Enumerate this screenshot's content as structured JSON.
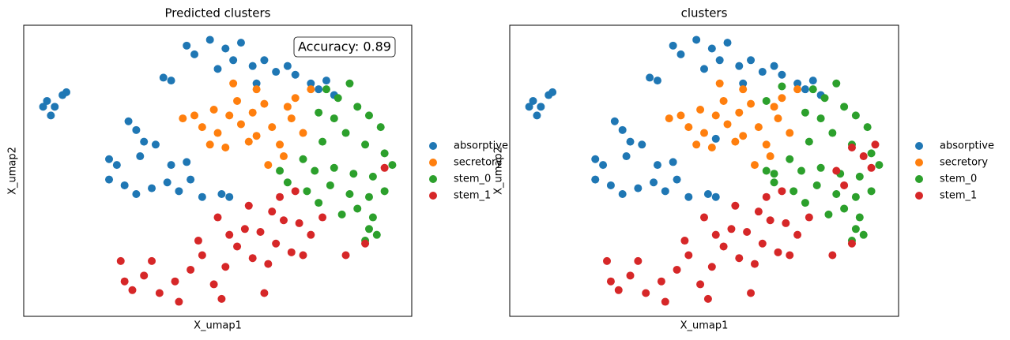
{
  "chart_data": [
    {
      "type": "scatter",
      "title": "Predicted clusters",
      "xlabel": "X_umap1",
      "ylabel": "X_umap2",
      "annotation": "Accuracy: 0.89",
      "xlim": [
        0,
        10
      ],
      "ylim": [
        0,
        10
      ],
      "series": [
        {
          "name": "absorptive",
          "color": "#1f77b4",
          "x": [
            0.5,
            0.6,
            0.8,
            1.0,
            1.1,
            0.7,
            3.6,
            3.8,
            4.2,
            4.4,
            4.8,
            5.2,
            5.4,
            5.6,
            5.9,
            6.2,
            6.5,
            6.8,
            7.0,
            7.4,
            7.8,
            8.0,
            7.6,
            6.0,
            5.0,
            2.7,
            2.9,
            3.1,
            3.4,
            3.0,
            2.4,
            2.2,
            2.6,
            2.9,
            3.3,
            3.7,
            4.0,
            4.3,
            4.6,
            5.1,
            5.3,
            3.8,
            4.2,
            2.2
          ],
          "y": [
            7.2,
            7.4,
            7.2,
            7.6,
            7.7,
            6.9,
            8.2,
            8.1,
            9.3,
            9.0,
            9.5,
            9.2,
            8.8,
            9.4,
            8.6,
            8.8,
            8.4,
            8.6,
            8.3,
            8.0,
            8.1,
            7.6,
            7.8,
            8.0,
            8.5,
            6.7,
            6.4,
            6.0,
            5.9,
            5.5,
            5.2,
            4.7,
            4.5,
            4.2,
            4.4,
            4.6,
            4.3,
            4.7,
            4.1,
            4.2,
            4.1,
            5.2,
            5.3,
            5.4
          ]
        },
        {
          "name": "secretory",
          "color": "#ff7f0e",
          "x": [
            4.1,
            4.4,
            4.6,
            4.9,
            5.0,
            5.3,
            5.5,
            5.6,
            5.9,
            6.0,
            6.2,
            6.4,
            6.6,
            6.7,
            6.9,
            7.0,
            7.2,
            6.3,
            5.8,
            4.8,
            5.2,
            6.8,
            7.4,
            5.4,
            6.0
          ],
          "y": [
            6.8,
            6.9,
            6.5,
            7.1,
            6.3,
            6.9,
            7.4,
            6.6,
            7.0,
            6.2,
            7.3,
            6.5,
            5.9,
            5.5,
            6.8,
            7.5,
            6.3,
            5.2,
            6.0,
            5.9,
            5.8,
            7.2,
            7.8,
            8.0,
            7.8
          ]
        },
        {
          "name": "stem_0",
          "color": "#2ca02c",
          "x": [
            7.8,
            8.1,
            8.4,
            7.6,
            8.0,
            8.6,
            8.9,
            9.2,
            8.3,
            7.7,
            8.8,
            9.3,
            9.5,
            7.2,
            7.5,
            8.0,
            8.5,
            9.0,
            6.8,
            7.3,
            7.9,
            8.4,
            8.9,
            9.3,
            8.6,
            9.0,
            8.9,
            8.8,
            9.1,
            7.6,
            6.6,
            8.2
          ],
          "y": [
            7.8,
            7.5,
            8.0,
            7.0,
            6.8,
            7.2,
            6.9,
            6.5,
            6.3,
            6.0,
            5.9,
            5.6,
            5.2,
            5.4,
            5.0,
            5.1,
            4.9,
            4.8,
            4.6,
            4.3,
            4.5,
            4.2,
            4.1,
            4.3,
            3.7,
            3.4,
            3.0,
            2.6,
            2.8,
            3.9,
            5.0,
            3.5
          ]
        },
        {
          "name": "stem_1",
          "color": "#d62728",
          "x": [
            2.6,
            2.5,
            2.8,
            3.1,
            3.5,
            3.3,
            3.9,
            4.0,
            4.3,
            4.6,
            4.9,
            5.1,
            5.2,
            5.5,
            5.7,
            5.3,
            4.5,
            5.9,
            6.1,
            6.3,
            6.5,
            6.7,
            6.9,
            7.1,
            7.4,
            7.7,
            7.2,
            5.8,
            6.4,
            7.0,
            8.3,
            8.8,
            9.3,
            6.6,
            6.2,
            5.0
          ],
          "y": [
            1.2,
            1.9,
            0.9,
            1.4,
            0.8,
            1.9,
            1.2,
            0.5,
            1.6,
            2.1,
            1.1,
            0.6,
            1.7,
            2.4,
            3.0,
            2.8,
            2.6,
            2.0,
            2.9,
            1.8,
            2.5,
            3.3,
            2.2,
            3.2,
            2.8,
            3.4,
            2.1,
            3.8,
            3.6,
            4.3,
            2.1,
            2.5,
            5.1,
            4.1,
            0.8,
            3.4
          ]
        }
      ]
    },
    {
      "type": "scatter",
      "title": "clusters",
      "xlabel": "X_umap1",
      "ylabel": "X_umap2",
      "xlim": [
        0,
        10
      ],
      "ylim": [
        0,
        10
      ],
      "series": [
        {
          "name": "absorptive",
          "color": "#1f77b4",
          "x": [
            0.5,
            0.6,
            0.8,
            1.0,
            1.1,
            0.7,
            3.6,
            3.8,
            4.2,
            4.4,
            4.8,
            5.2,
            5.4,
            5.6,
            5.9,
            6.2,
            6.5,
            6.8,
            7.0,
            7.4,
            7.8,
            8.0,
            7.6,
            6.0,
            5.0,
            2.7,
            2.9,
            3.1,
            3.4,
            3.0,
            2.4,
            2.2,
            2.6,
            2.9,
            3.3,
            3.7,
            4.0,
            4.3,
            4.6,
            5.1,
            5.3,
            3.8,
            4.2,
            2.2,
            5.3
          ],
          "y": [
            7.2,
            7.4,
            7.2,
            7.6,
            7.7,
            6.9,
            8.2,
            8.1,
            9.3,
            9.0,
            9.5,
            9.2,
            8.8,
            9.4,
            8.6,
            8.8,
            8.4,
            8.6,
            8.3,
            8.0,
            8.1,
            7.6,
            7.8,
            8.0,
            8.5,
            6.7,
            6.4,
            6.0,
            5.9,
            5.5,
            5.2,
            4.7,
            4.5,
            4.2,
            4.4,
            4.6,
            4.3,
            4.7,
            4.1,
            4.2,
            4.1,
            5.2,
            5.3,
            5.4,
            6.1
          ]
        },
        {
          "name": "secretory",
          "color": "#ff7f0e",
          "x": [
            4.1,
            4.4,
            4.6,
            4.9,
            5.0,
            5.3,
            5.5,
            5.6,
            5.9,
            6.0,
            6.2,
            6.4,
            6.6,
            6.7,
            6.9,
            7.0,
            7.2,
            6.3,
            5.8,
            4.8,
            5.2,
            6.8,
            7.4,
            5.4,
            6.0
          ],
          "y": [
            6.8,
            6.9,
            6.5,
            7.1,
            6.3,
            6.9,
            7.4,
            6.6,
            7.0,
            6.2,
            7.3,
            6.5,
            5.9,
            5.5,
            6.8,
            7.5,
            6.3,
            5.2,
            6.0,
            5.9,
            5.8,
            7.2,
            7.8,
            8.0,
            7.8
          ]
        },
        {
          "name": "stem_0",
          "color": "#2ca02c",
          "x": [
            7.8,
            8.1,
            8.4,
            7.6,
            8.0,
            8.6,
            8.9,
            9.2,
            8.3,
            7.7,
            8.8,
            9.3,
            9.5,
            7.2,
            7.5,
            8.0,
            8.5,
            9.0,
            6.8,
            7.3,
            7.9,
            8.4,
            8.9,
            9.3,
            8.6,
            9.0,
            8.9,
            8.8,
            9.1,
            7.6,
            6.6,
            8.2,
            7.0,
            6.6,
            6.8
          ],
          "y": [
            7.8,
            7.5,
            8.0,
            7.0,
            6.8,
            7.2,
            6.9,
            6.5,
            6.3,
            6.0,
            5.9,
            5.6,
            5.2,
            5.4,
            5.0,
            5.1,
            4.9,
            4.8,
            4.6,
            4.3,
            4.5,
            4.2,
            4.1,
            4.3,
            3.7,
            3.4,
            3.0,
            2.6,
            2.8,
            3.9,
            5.0,
            3.5,
            7.9,
            7.4,
            4.9
          ]
        },
        {
          "name": "stem_1",
          "color": "#d62728",
          "x": [
            2.6,
            2.5,
            2.8,
            3.1,
            3.5,
            3.3,
            3.9,
            4.0,
            4.3,
            4.6,
            4.9,
            5.1,
            5.2,
            5.5,
            5.7,
            5.3,
            4.5,
            5.9,
            6.1,
            6.3,
            6.5,
            6.7,
            6.9,
            7.1,
            7.4,
            7.7,
            7.2,
            5.8,
            6.4,
            7.0,
            8.3,
            8.8,
            9.3,
            6.6,
            6.2,
            5.0,
            8.8,
            9.1,
            9.4,
            8.4,
            8.6
          ],
          "y": [
            1.2,
            1.9,
            0.9,
            1.4,
            0.8,
            1.9,
            1.2,
            0.5,
            1.6,
            2.1,
            1.1,
            0.6,
            1.7,
            2.4,
            3.0,
            2.8,
            2.6,
            2.0,
            2.9,
            1.8,
            2.5,
            3.3,
            2.2,
            3.2,
            2.8,
            3.4,
            2.1,
            3.8,
            3.6,
            4.3,
            2.1,
            2.5,
            5.1,
            4.1,
            0.8,
            3.4,
            5.8,
            5.5,
            5.9,
            5.0,
            4.5
          ]
        }
      ]
    }
  ]
}
